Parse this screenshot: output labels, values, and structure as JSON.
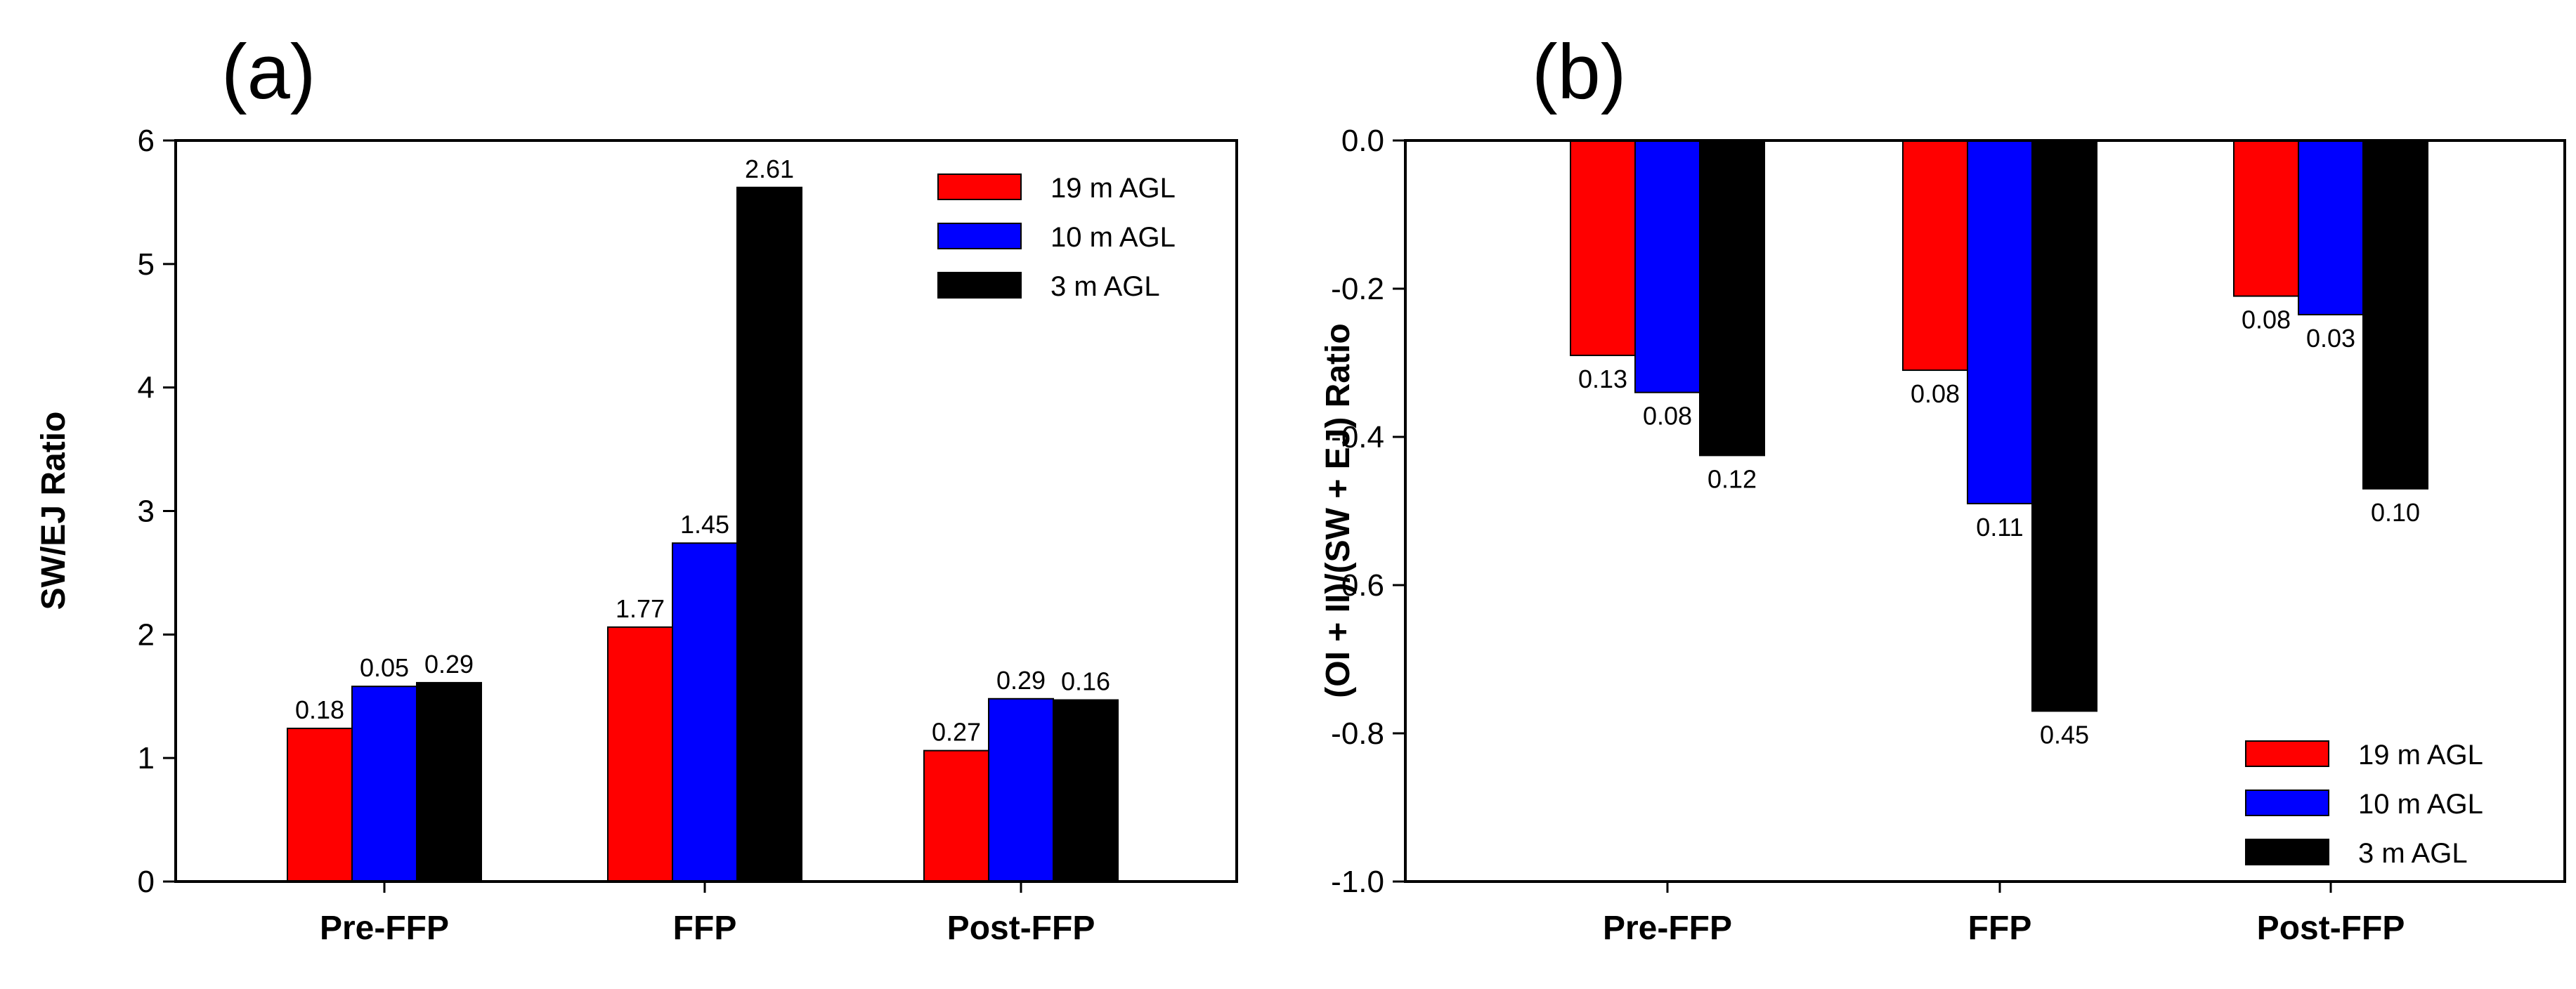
{
  "chart_data": [
    {
      "type": "bar",
      "panel_label": "(a)",
      "ylabel": "SW/EJ Ratio",
      "xlabel": "",
      "categories": [
        "Pre-FFP",
        "FFP",
        "Post-FFP"
      ],
      "ylim": [
        0,
        6
      ],
      "yticks": [
        0,
        1,
        2,
        3,
        4,
        5,
        6
      ],
      "series": [
        {
          "name": "19 m AGL",
          "color": "#ff0000",
          "values": [
            1.24,
            2.06,
            1.06
          ],
          "labels": [
            "0.18",
            "1.77",
            "0.27"
          ]
        },
        {
          "name": "10 m AGL",
          "color": "#0000ff",
          "values": [
            1.58,
            2.74,
            1.48
          ],
          "labels": [
            "0.05",
            "1.45",
            "0.29"
          ]
        },
        {
          "name": "3 m AGL",
          "color": "#000000",
          "values": [
            1.61,
            5.62,
            1.47
          ],
          "labels": [
            "0.29",
            "2.61",
            "0.16"
          ]
        }
      ],
      "legend": "top-right",
      "grid": false
    },
    {
      "type": "bar",
      "panel_label": "(b)",
      "ylabel": "(OI + II)/(SW + EJ) Ratio",
      "xlabel": "",
      "categories": [
        "Pre-FFP",
        "FFP",
        "Post-FFP"
      ],
      "ylim": [
        -1.0,
        0.0
      ],
      "yticks": [
        0.0,
        -0.2,
        -0.4,
        -0.6,
        -0.8,
        -1.0
      ],
      "series": [
        {
          "name": "19 m AGL",
          "color": "#ff0000",
          "values": [
            -0.29,
            -0.31,
            -0.21
          ],
          "labels": [
            "0.13",
            "0.08",
            "0.08"
          ]
        },
        {
          "name": "10 m AGL",
          "color": "#0000ff",
          "values": [
            -0.34,
            -0.49,
            -0.235
          ],
          "labels": [
            "0.08",
            "0.11",
            "0.03"
          ]
        },
        {
          "name": "3 m AGL",
          "color": "#000000",
          "values": [
            -0.425,
            -0.77,
            -0.47
          ],
          "labels": [
            "0.12",
            "0.45",
            "0.10"
          ]
        }
      ],
      "legend": "bottom-right",
      "grid": false
    }
  ]
}
